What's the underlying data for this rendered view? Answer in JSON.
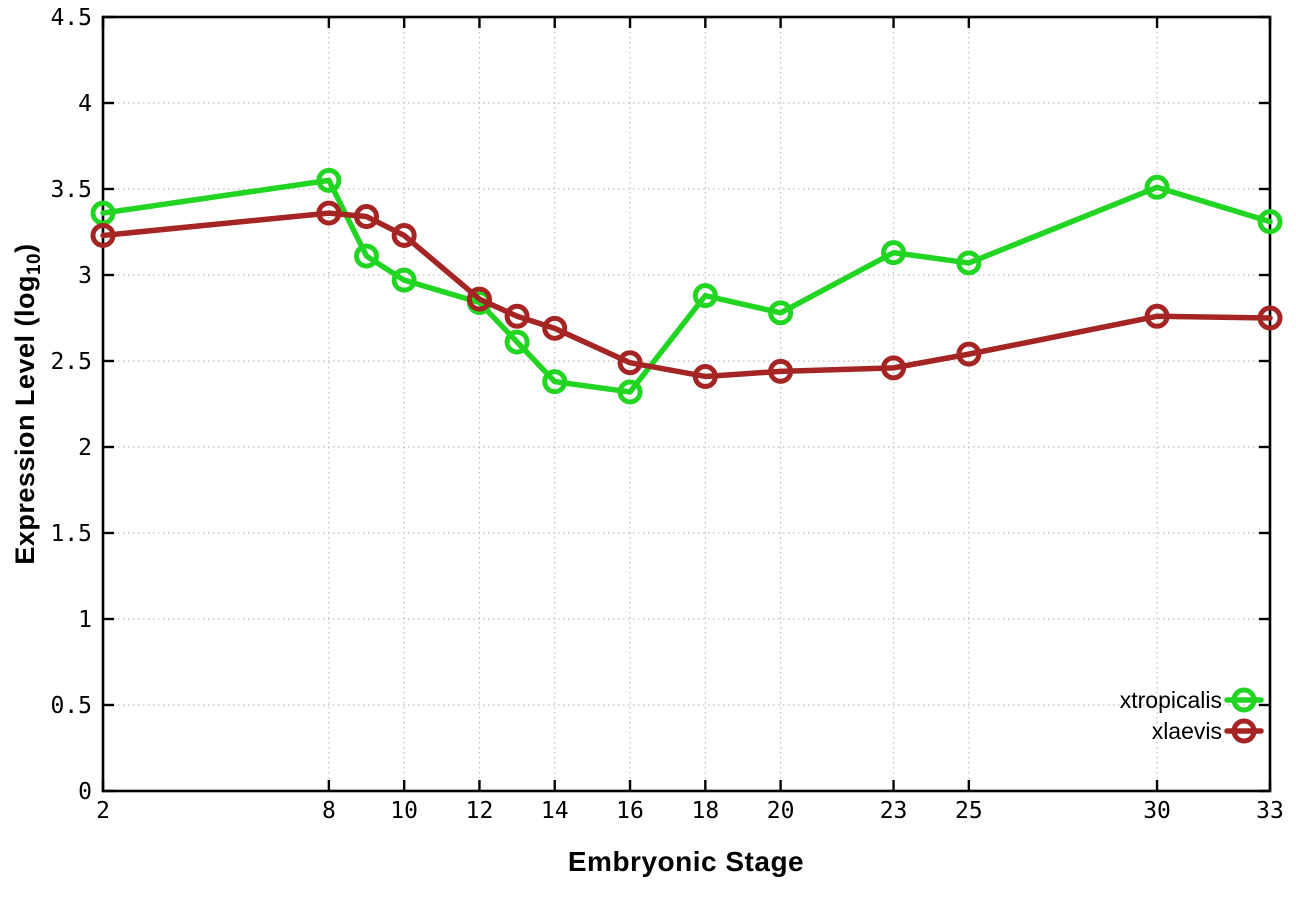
{
  "chart_data": {
    "type": "line",
    "title": "",
    "xlabel": "Embryonic Stage",
    "ylabel": "Expression Level (log10)",
    "ylabel_parts": {
      "prefix": "Expression Level (log",
      "sub": "10",
      "suffix": ")"
    },
    "xlim": [
      2,
      33
    ],
    "ylim": [
      0,
      4.5
    ],
    "x_ticks": [
      2,
      8,
      10,
      12,
      14,
      16,
      18,
      20,
      23,
      25,
      30,
      33
    ],
    "y_ticks": [
      0,
      0.5,
      1,
      1.5,
      2,
      2.5,
      3,
      3.5,
      4,
      4.5
    ],
    "grid": true,
    "legend_position": "bottom-right-inside",
    "x": [
      2,
      8,
      9,
      10,
      12,
      13,
      14,
      16,
      18,
      20,
      23,
      25,
      30,
      33
    ],
    "series": [
      {
        "name": "xtropicalis",
        "color": "#23d523",
        "values": [
          3.36,
          3.55,
          3.11,
          2.97,
          2.84,
          2.61,
          2.38,
          2.32,
          2.88,
          2.78,
          3.13,
          3.07,
          3.51,
          3.31
        ]
      },
      {
        "name": "xlaevis",
        "color": "#a52525",
        "values": [
          3.23,
          3.36,
          3.34,
          3.23,
          2.86,
          2.76,
          2.69,
          2.49,
          2.41,
          2.44,
          2.46,
          2.54,
          2.76,
          2.75
        ]
      }
    ]
  },
  "style": {
    "background": "#ffffff",
    "border_color": "#000000",
    "grid_color": "#bdbdbd",
    "tick_label_color": "#000000",
    "legend_text_color": "#000000"
  }
}
